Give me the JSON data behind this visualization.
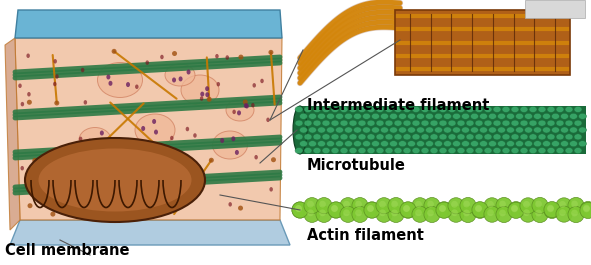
{
  "labels": {
    "intermediate_filament": "Intermediate filament",
    "microtubule": "Microtubule",
    "actin_filament": "Actin filament",
    "cell_membrane": "Cell membrane"
  },
  "bg_color": "#ffffff",
  "fig_width": 5.91,
  "fig_height": 2.65,
  "dpi": 100,
  "label_fontsize": 10.5,
  "label_fontweight": "bold",
  "cell_bg": "#f5c8a8",
  "top_plate_color": "#7bbdd8",
  "bot_plate_color": "#b8d8e8",
  "mito_color": "#7a3d10",
  "mito_edge": "#3d1a00",
  "orange_net_color": "#c87800",
  "green_tube_color": "#2e7a45",
  "pink_blob_color": "#e8a888",
  "ribosome_color": "#8b1010",
  "if_gold_color": "#d4860a",
  "if_brown_color": "#8b4010",
  "mt_dark_color": "#1a6b3a",
  "mt_bead_color": "#3aaa6a",
  "af_bead_color": "#7ec832",
  "af_bead_edge": "#5a9020",
  "line_color": "#555555"
}
